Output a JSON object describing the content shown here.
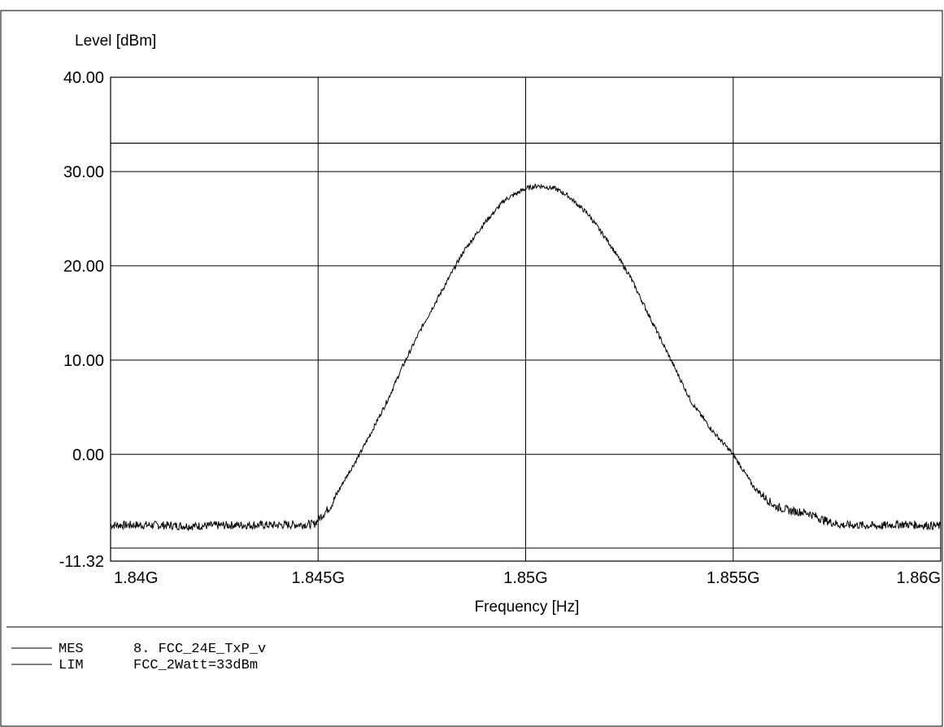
{
  "chart_data": {
    "type": "line",
    "ylabel": "Level [dBm]",
    "xlabel": "Frequency [Hz]",
    "xlim": [
      1840000000,
      1860000000
    ],
    "ylim": [
      -11.32,
      40.0
    ],
    "yticks": [
      {
        "value": 40.0,
        "label": "40.00"
      },
      {
        "value": 30.0,
        "label": "30.00"
      },
      {
        "value": 20.0,
        "label": "20.00"
      },
      {
        "value": 10.0,
        "label": "10.00"
      },
      {
        "value": 0.0,
        "label": "0.00"
      },
      {
        "value": -11.32,
        "label": "-11.32"
      }
    ],
    "xticks": [
      {
        "value": 1840000000,
        "label": "1.84G"
      },
      {
        "value": 1845000000,
        "label": "1.845G"
      },
      {
        "value": 1850000000,
        "label": "1.85G"
      },
      {
        "value": 1855000000,
        "label": "1.855G"
      },
      {
        "value": 1860000000,
        "label": "1.86G"
      }
    ],
    "grid": true,
    "series": [
      {
        "name": "MES 8. FCC_24E_TxP_v",
        "color": "#000000",
        "x": [
          1840000000,
          1841000000,
          1842000000,
          1843000000,
          1844000000,
          1844900000,
          1845300000,
          1845600000,
          1846000000,
          1846300000,
          1846700000,
          1847000000,
          1847500000,
          1848000000,
          1848500000,
          1849000000,
          1849500000,
          1850000000,
          1850300000,
          1850700000,
          1851000000,
          1851500000,
          1852000000,
          1852500000,
          1853000000,
          1853500000,
          1854000000,
          1854500000,
          1855000000,
          1855500000,
          1856000000,
          1856400000,
          1856800000,
          1857200000,
          1857600000,
          1858000000,
          1858500000,
          1859000000,
          1859500000,
          1860000000
        ],
        "y": [
          -7.5,
          -7.5,
          -7.6,
          -7.5,
          -7.5,
          -7.4,
          -5.5,
          -3.0,
          0.0,
          2.5,
          6.0,
          9.0,
          13.5,
          17.5,
          21.5,
          24.5,
          27.0,
          28.2,
          28.5,
          28.2,
          27.5,
          25.5,
          22.5,
          19.0,
          14.5,
          10.0,
          5.5,
          2.5,
          0.0,
          -3.5,
          -5.5,
          -6.0,
          -6.2,
          -7.0,
          -7.5,
          -7.5,
          -7.6,
          -7.4,
          -7.5,
          -7.6
        ]
      },
      {
        "name": "LIM FCC_2Watt=33dBm",
        "color": "#000000",
        "x": [
          1840000000,
          1860000000
        ],
        "y": [
          33.0,
          33.0
        ]
      }
    ]
  },
  "legend": [
    {
      "tag": "MES",
      "text": "8. FCC_24E_TxP_v"
    },
    {
      "tag": "LIM",
      "text": "FCC_2Watt=33dBm"
    }
  ]
}
